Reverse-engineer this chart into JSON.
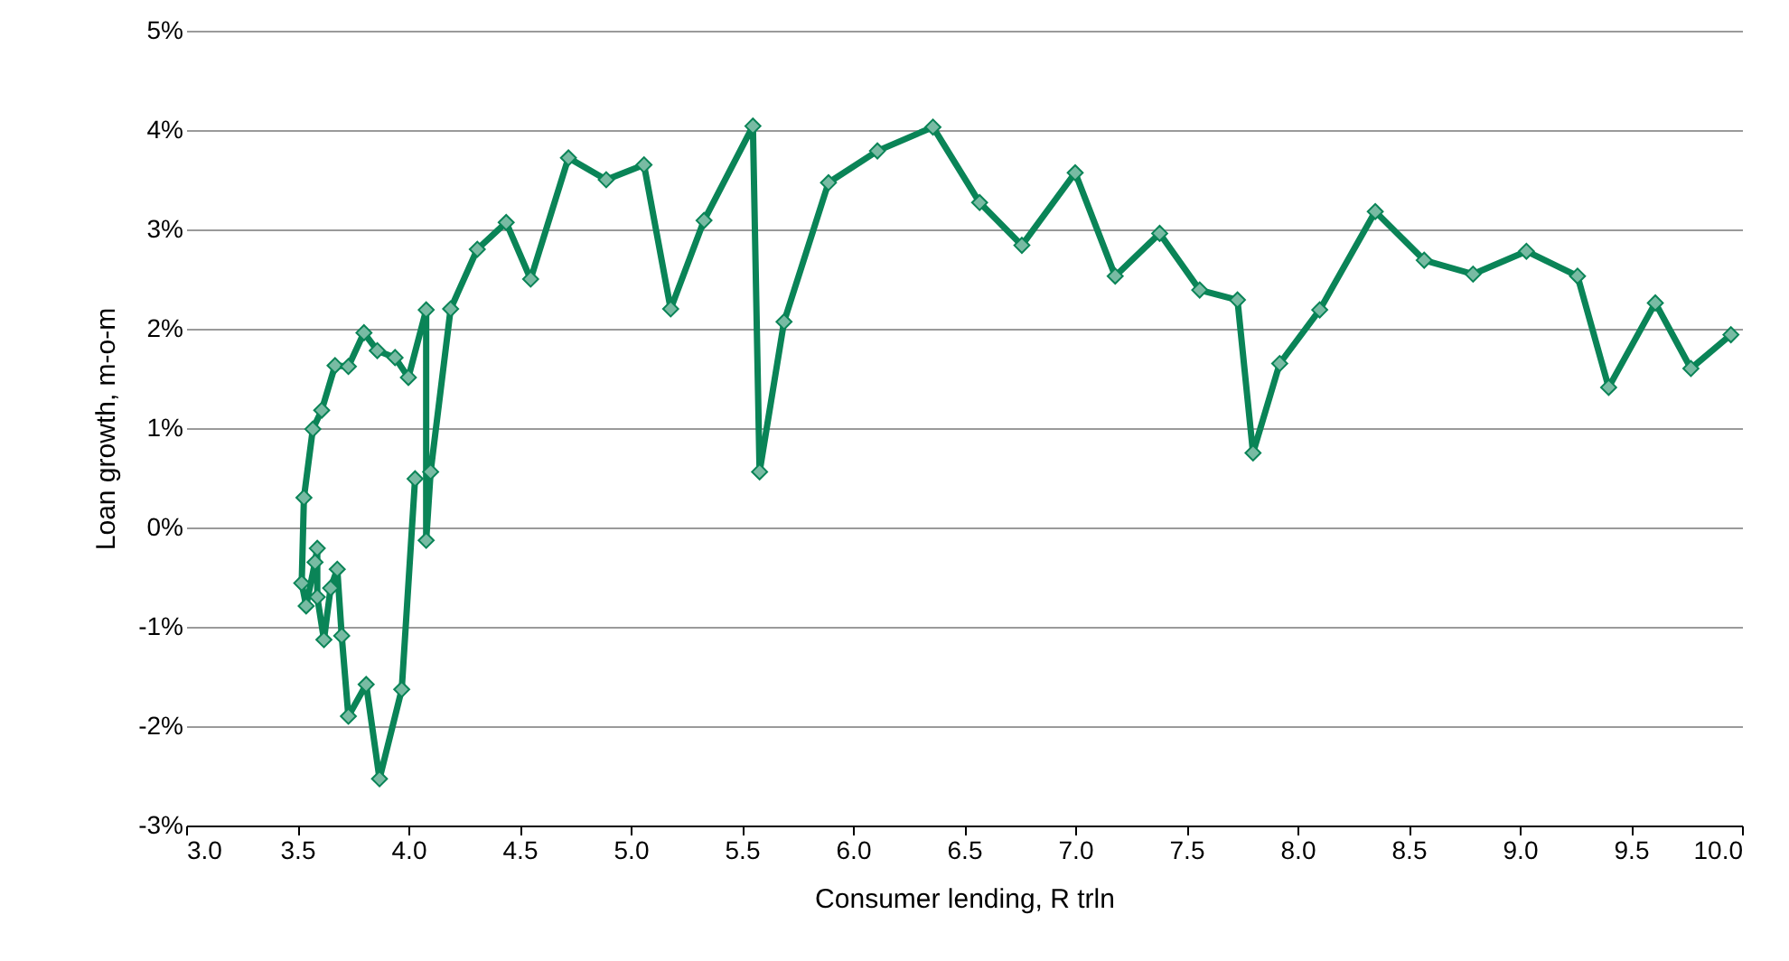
{
  "chart_data": {
    "type": "line",
    "xlabel": "Consumer lending, R trln",
    "ylabel": "Loan growth, m-o-m",
    "x": [
      4.03,
      3.97,
      3.87,
      3.81,
      3.73,
      3.7,
      3.68,
      3.65,
      3.62,
      3.59,
      3.59,
      3.58,
      3.54,
      3.52,
      3.53,
      3.57,
      3.61,
      3.67,
      3.73,
      3.8,
      3.86,
      3.94,
      4.0,
      4.08,
      4.08,
      4.1,
      4.19,
      4.31,
      4.44,
      4.55,
      4.72,
      4.89,
      5.06,
      5.18,
      5.33,
      5.55,
      5.58,
      5.69,
      5.89,
      6.11,
      6.36,
      6.57,
      6.76,
      7.0,
      7.18,
      7.38,
      7.56,
      7.73,
      7.8,
      7.92,
      8.1,
      8.35,
      8.57,
      8.79,
      9.03,
      9.26,
      9.4,
      9.61,
      9.77,
      9.95
    ],
    "series": [
      {
        "color": "#0a8457",
        "values": [
          0.49,
          -1.63,
          -2.53,
          -1.58,
          -1.9,
          -1.09,
          -0.42,
          -0.61,
          -1.13,
          -0.7,
          -0.21,
          -0.35,
          -0.79,
          -0.56,
          0.3,
          0.99,
          1.18,
          1.63,
          1.62,
          1.96,
          1.78,
          1.71,
          1.51,
          2.19,
          -0.13,
          0.56,
          2.2,
          2.8,
          3.07,
          2.5,
          3.72,
          3.5,
          3.65,
          2.2,
          3.09,
          4.04,
          0.56,
          2.07,
          3.47,
          3.79,
          4.03,
          3.27,
          2.84,
          3.57,
          2.53,
          2.96,
          2.39,
          2.29,
          0.75,
          1.65,
          2.19,
          3.18,
          2.69,
          2.55,
          2.78,
          2.53,
          1.41,
          2.26,
          1.6,
          1.94
        ]
      }
    ],
    "xlim": [
      3,
      10
    ],
    "xticks": [
      {
        "value": 3,
        "label": "3.0"
      },
      {
        "value": 3.5,
        "label": "3.5"
      },
      {
        "value": 4,
        "label": "4.0"
      },
      {
        "value": 4.5,
        "label": "4.5"
      },
      {
        "value": 5,
        "label": "5.0"
      },
      {
        "value": 5.5,
        "label": "5.5"
      },
      {
        "value": 6,
        "label": "6.0"
      },
      {
        "value": 6.5,
        "label": "6.5"
      },
      {
        "value": 7,
        "label": "7.0"
      },
      {
        "value": 7.5,
        "label": "7.5"
      },
      {
        "value": 8,
        "label": "8.0"
      },
      {
        "value": 8.5,
        "label": "8.5"
      },
      {
        "value": 9,
        "label": "9.0"
      },
      {
        "value": 9.5,
        "label": "9.5"
      },
      {
        "value": 10,
        "label": "10.0"
      }
    ],
    "ylim": [
      -3,
      5
    ],
    "yticks": [
      {
        "value": -3,
        "label": "-3%"
      },
      {
        "value": -2,
        "label": "-2%"
      },
      {
        "value": -1,
        "label": "-1%"
      },
      {
        "value": 0,
        "label": "0%"
      },
      {
        "value": 1,
        "label": "1%"
      },
      {
        "value": 2,
        "label": "2%"
      },
      {
        "value": 3,
        "label": "3%"
      },
      {
        "value": 4,
        "label": "4%"
      },
      {
        "value": 5,
        "label": "5%"
      }
    ],
    "grid": "y",
    "marker": "diamond",
    "line_style": "solid"
  }
}
